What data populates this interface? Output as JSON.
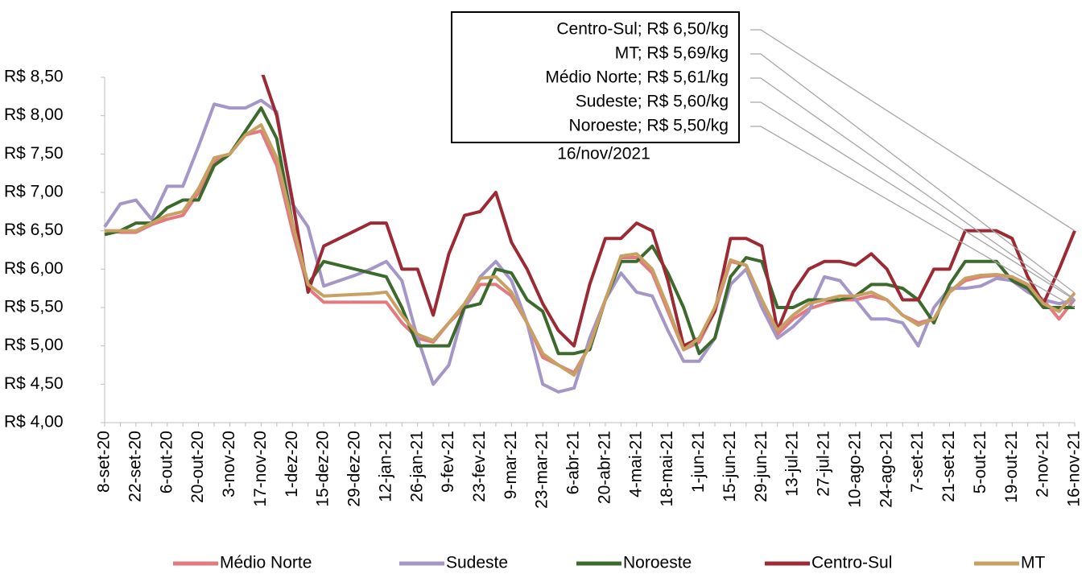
{
  "chart_data": {
    "type": "line",
    "categories": [
      "8-set-20",
      null,
      "22-set-20",
      null,
      "6-out-20",
      null,
      "20-out-20",
      null,
      "3-nov-20",
      null,
      "17-nov-20",
      null,
      "1-dez-20",
      null,
      "15-dez-20",
      null,
      "29-dez-20",
      null,
      "12-jan-21",
      null,
      "26-jan-21",
      null,
      "9-fev-21",
      null,
      "23-fev-21",
      null,
      "9-mar-21",
      null,
      "23-mar-21",
      null,
      "6-abr-21",
      null,
      "20-abr-21",
      null,
      "4-mai-21",
      null,
      "18-mai-21",
      null,
      "1-jun-21",
      null,
      "15-jun-21",
      null,
      "29-jun-21",
      null,
      "13-jul-21",
      null,
      "27-jul-21",
      null,
      "10-ago-21",
      null,
      "24-ago-21",
      null,
      "7-set-21",
      null,
      "21-set-21",
      null,
      "5-out-21",
      null,
      "19-out-21",
      null,
      "2-nov-21",
      null,
      "16-nov-21"
    ],
    "series": [
      {
        "name": "Médio Norte",
        "color": "#e27a7f",
        "values": [
          6.5,
          6.48,
          6.48,
          6.58,
          6.65,
          6.7,
          7.0,
          7.4,
          7.5,
          7.75,
          7.8,
          7.35,
          6.5,
          5.75,
          5.57,
          5.57,
          5.57,
          5.57,
          5.57,
          5.3,
          5.1,
          5.05,
          5.3,
          5.5,
          5.8,
          5.8,
          5.65,
          5.3,
          4.85,
          4.75,
          4.65,
          5.0,
          5.6,
          6.15,
          6.15,
          5.95,
          5.45,
          4.95,
          5.05,
          5.45,
          6.1,
          6.05,
          5.6,
          5.15,
          5.35,
          5.48,
          5.55,
          5.6,
          5.6,
          5.65,
          5.6,
          5.4,
          5.3,
          5.35,
          5.7,
          5.85,
          5.9,
          5.92,
          5.9,
          5.75,
          5.6,
          5.35,
          5.61
        ]
      },
      {
        "name": "Sudeste",
        "color": "#a596c8",
        "values": [
          6.55,
          6.85,
          6.9,
          6.65,
          7.08,
          7.08,
          7.6,
          8.15,
          8.1,
          8.1,
          8.2,
          8.05,
          6.85,
          6.55,
          5.78,
          5.85,
          5.92,
          6.0,
          6.1,
          5.85,
          5.1,
          4.5,
          4.75,
          5.5,
          5.9,
          6.1,
          5.85,
          5.3,
          4.5,
          4.4,
          4.45,
          5.1,
          5.6,
          5.95,
          5.7,
          5.65,
          5.2,
          4.8,
          4.8,
          5.1,
          5.8,
          6.0,
          5.5,
          5.1,
          5.25,
          5.45,
          5.9,
          5.85,
          5.6,
          5.35,
          5.35,
          5.3,
          5.0,
          5.5,
          5.75,
          5.75,
          5.78,
          5.88,
          5.85,
          5.7,
          5.6,
          5.55,
          5.6
        ]
      },
      {
        "name": "Noroeste",
        "color": "#3b6a2c",
        "values": [
          6.45,
          6.5,
          6.6,
          6.6,
          6.8,
          6.9,
          6.9,
          7.35,
          7.5,
          7.8,
          8.1,
          7.7,
          6.6,
          5.8,
          6.1,
          6.05,
          6.0,
          5.95,
          5.9,
          5.5,
          5.0,
          5.0,
          5.0,
          5.5,
          5.55,
          6.0,
          5.95,
          5.6,
          5.45,
          4.9,
          4.9,
          4.95,
          5.6,
          6.1,
          6.1,
          6.3,
          5.95,
          5.5,
          4.9,
          5.1,
          5.9,
          6.15,
          6.1,
          5.5,
          5.5,
          5.6,
          5.6,
          5.6,
          5.65,
          5.8,
          5.8,
          5.75,
          5.6,
          5.3,
          5.8,
          6.1,
          6.1,
          6.1,
          5.85,
          5.75,
          5.5,
          5.5,
          5.5
        ]
      },
      {
        "name": "Centro-Sul",
        "color": "#9c2a35",
        "values": [
          null,
          null,
          null,
          null,
          null,
          null,
          null,
          null,
          null,
          null,
          8.6,
          8.0,
          6.9,
          5.7,
          6.3,
          6.4,
          6.5,
          6.6,
          6.6,
          6.0,
          6.0,
          5.4,
          6.2,
          6.7,
          6.75,
          7.0,
          6.35,
          6.0,
          5.55,
          5.2,
          5.0,
          5.8,
          6.4,
          6.4,
          6.6,
          6.5,
          5.85,
          5.0,
          5.1,
          5.45,
          6.4,
          6.4,
          6.3,
          5.2,
          5.7,
          6.0,
          6.1,
          6.1,
          6.05,
          6.2,
          6.0,
          5.6,
          5.6,
          6.0,
          6.0,
          6.5,
          6.5,
          6.5,
          6.4,
          5.9,
          5.55,
          6.0,
          6.5
        ]
      },
      {
        "name": "MT",
        "color": "#c9a063",
        "values": [
          6.5,
          6.5,
          6.5,
          6.6,
          6.7,
          6.75,
          7.05,
          7.45,
          7.5,
          7.75,
          7.88,
          7.45,
          6.6,
          5.8,
          5.65,
          5.66,
          5.67,
          5.68,
          5.7,
          5.4,
          5.15,
          5.07,
          5.3,
          5.55,
          5.88,
          5.9,
          5.7,
          5.3,
          4.9,
          4.75,
          4.62,
          5.0,
          5.6,
          6.17,
          6.2,
          6.0,
          5.5,
          4.95,
          5.1,
          5.5,
          6.12,
          6.05,
          5.6,
          5.2,
          5.4,
          5.55,
          5.6,
          5.65,
          5.65,
          5.7,
          5.6,
          5.4,
          5.27,
          5.35,
          5.7,
          5.88,
          5.92,
          5.93,
          5.9,
          5.8,
          5.55,
          5.45,
          5.69
        ]
      }
    ],
    "ylim": [
      4.0,
      8.5
    ],
    "yticks": [
      {
        "value": 4.0,
        "label": "R$ 4,00"
      },
      {
        "value": 4.5,
        "label": "R$ 4,50"
      },
      {
        "value": 5.0,
        "label": "R$ 5,00"
      },
      {
        "value": 5.5,
        "label": "R$ 5,50"
      },
      {
        "value": 6.0,
        "label": "R$ 6,00"
      },
      {
        "value": 6.5,
        "label": "R$ 6,50"
      },
      {
        "value": 7.0,
        "label": "R$ 7,00"
      },
      {
        "value": 7.5,
        "label": "R$ 7,50"
      },
      {
        "value": 8.0,
        "label": "R$ 8,00"
      },
      {
        "value": 8.5,
        "label": "R$ 8,50"
      }
    ],
    "annotations": [
      "Centro-Sul; R$ 6,50/kg",
      "MT; R$ 5,69/kg",
      "Médio Norte; R$ 5,61/kg",
      "Sudeste; R$ 5,60/kg",
      "Noroeste; R$ 5,50/kg"
    ],
    "annotation_date": "16/nov/2021"
  }
}
